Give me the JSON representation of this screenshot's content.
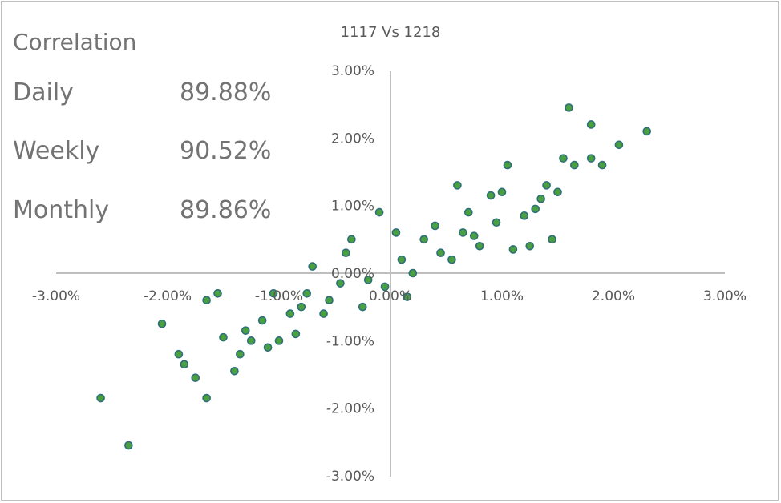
{
  "stats": {
    "heading": "Correlation",
    "rows": [
      {
        "label": "Daily",
        "value": "89.88%"
      },
      {
        "label": "Weekly",
        "value": "90.52%"
      },
      {
        "label": "Monthly",
        "value": "89.86%"
      }
    ]
  },
  "colors": {
    "point_fill": "#4aa040",
    "point_stroke": "#2e6f7a",
    "axis": "#bfbfbf",
    "text": "#595959"
  },
  "chart_data": {
    "type": "scatter",
    "title": "1117 Vs 1218",
    "xlabel": "",
    "ylabel": "",
    "xlim": [
      -3,
      3
    ],
    "ylim": [
      -3,
      3
    ],
    "grid": false,
    "legend": "none",
    "x_tick_labels": [
      "-3.00%",
      "-2.00%",
      "-1.00%",
      "0.00%",
      "1.00%",
      "2.00%",
      "3.00%"
    ],
    "y_tick_labels": [
      "3.00%",
      "2.00%",
      "1.00%",
      "0.00%",
      "-1.00%",
      "-2.00%",
      "-3.00%"
    ],
    "series": [
      {
        "x": [
          1.6,
          2.3,
          1.8,
          2.05,
          1.9,
          1.8,
          1.55,
          1.65,
          1.05,
          1.4,
          0.9,
          1.0,
          1.3,
          1.45,
          1.25,
          0.6,
          0.7,
          1.1,
          -0.35,
          -0.1,
          -0.55,
          -0.7,
          -0.6,
          -0.85,
          -1.0,
          -1.1,
          -1.35,
          -1.55,
          -1.65,
          -2.05,
          -2.6,
          -2.35,
          -1.85,
          -1.65,
          -1.75,
          -1.4,
          -1.25,
          -1.5,
          -1.15,
          -0.8,
          -0.75,
          -0.4,
          -0.25,
          0.05,
          0.4,
          0.8,
          0.55,
          0.2,
          -0.05,
          0.15,
          -0.2,
          -1.3,
          -1.9,
          0.3,
          0.45,
          1.2,
          1.35,
          0.95,
          0.65,
          1.5,
          -0.9,
          -1.05,
          -0.45,
          0.1,
          0.75
        ],
        "y": [
          2.45,
          2.1,
          2.2,
          1.9,
          1.6,
          1.7,
          1.7,
          1.6,
          1.6,
          1.3,
          1.15,
          1.2,
          0.95,
          0.5,
          0.4,
          1.3,
          0.9,
          0.35,
          0.5,
          0.9,
          -0.4,
          0.1,
          -0.6,
          -0.9,
          -1.0,
          -1.1,
          -1.2,
          -0.3,
          -0.4,
          -0.75,
          -1.85,
          -2.55,
          -1.35,
          -1.85,
          -1.55,
          -1.45,
          -1.0,
          -0.95,
          -0.7,
          -0.5,
          -0.3,
          0.3,
          -0.5,
          0.6,
          0.7,
          0.4,
          0.2,
          0.0,
          -0.2,
          -0.35,
          -0.1,
          -0.85,
          -1.2,
          0.5,
          0.3,
          0.85,
          1.1,
          0.75,
          0.6,
          1.2,
          -0.6,
          -0.3,
          -0.15,
          0.2,
          0.55
        ]
      }
    ]
  }
}
